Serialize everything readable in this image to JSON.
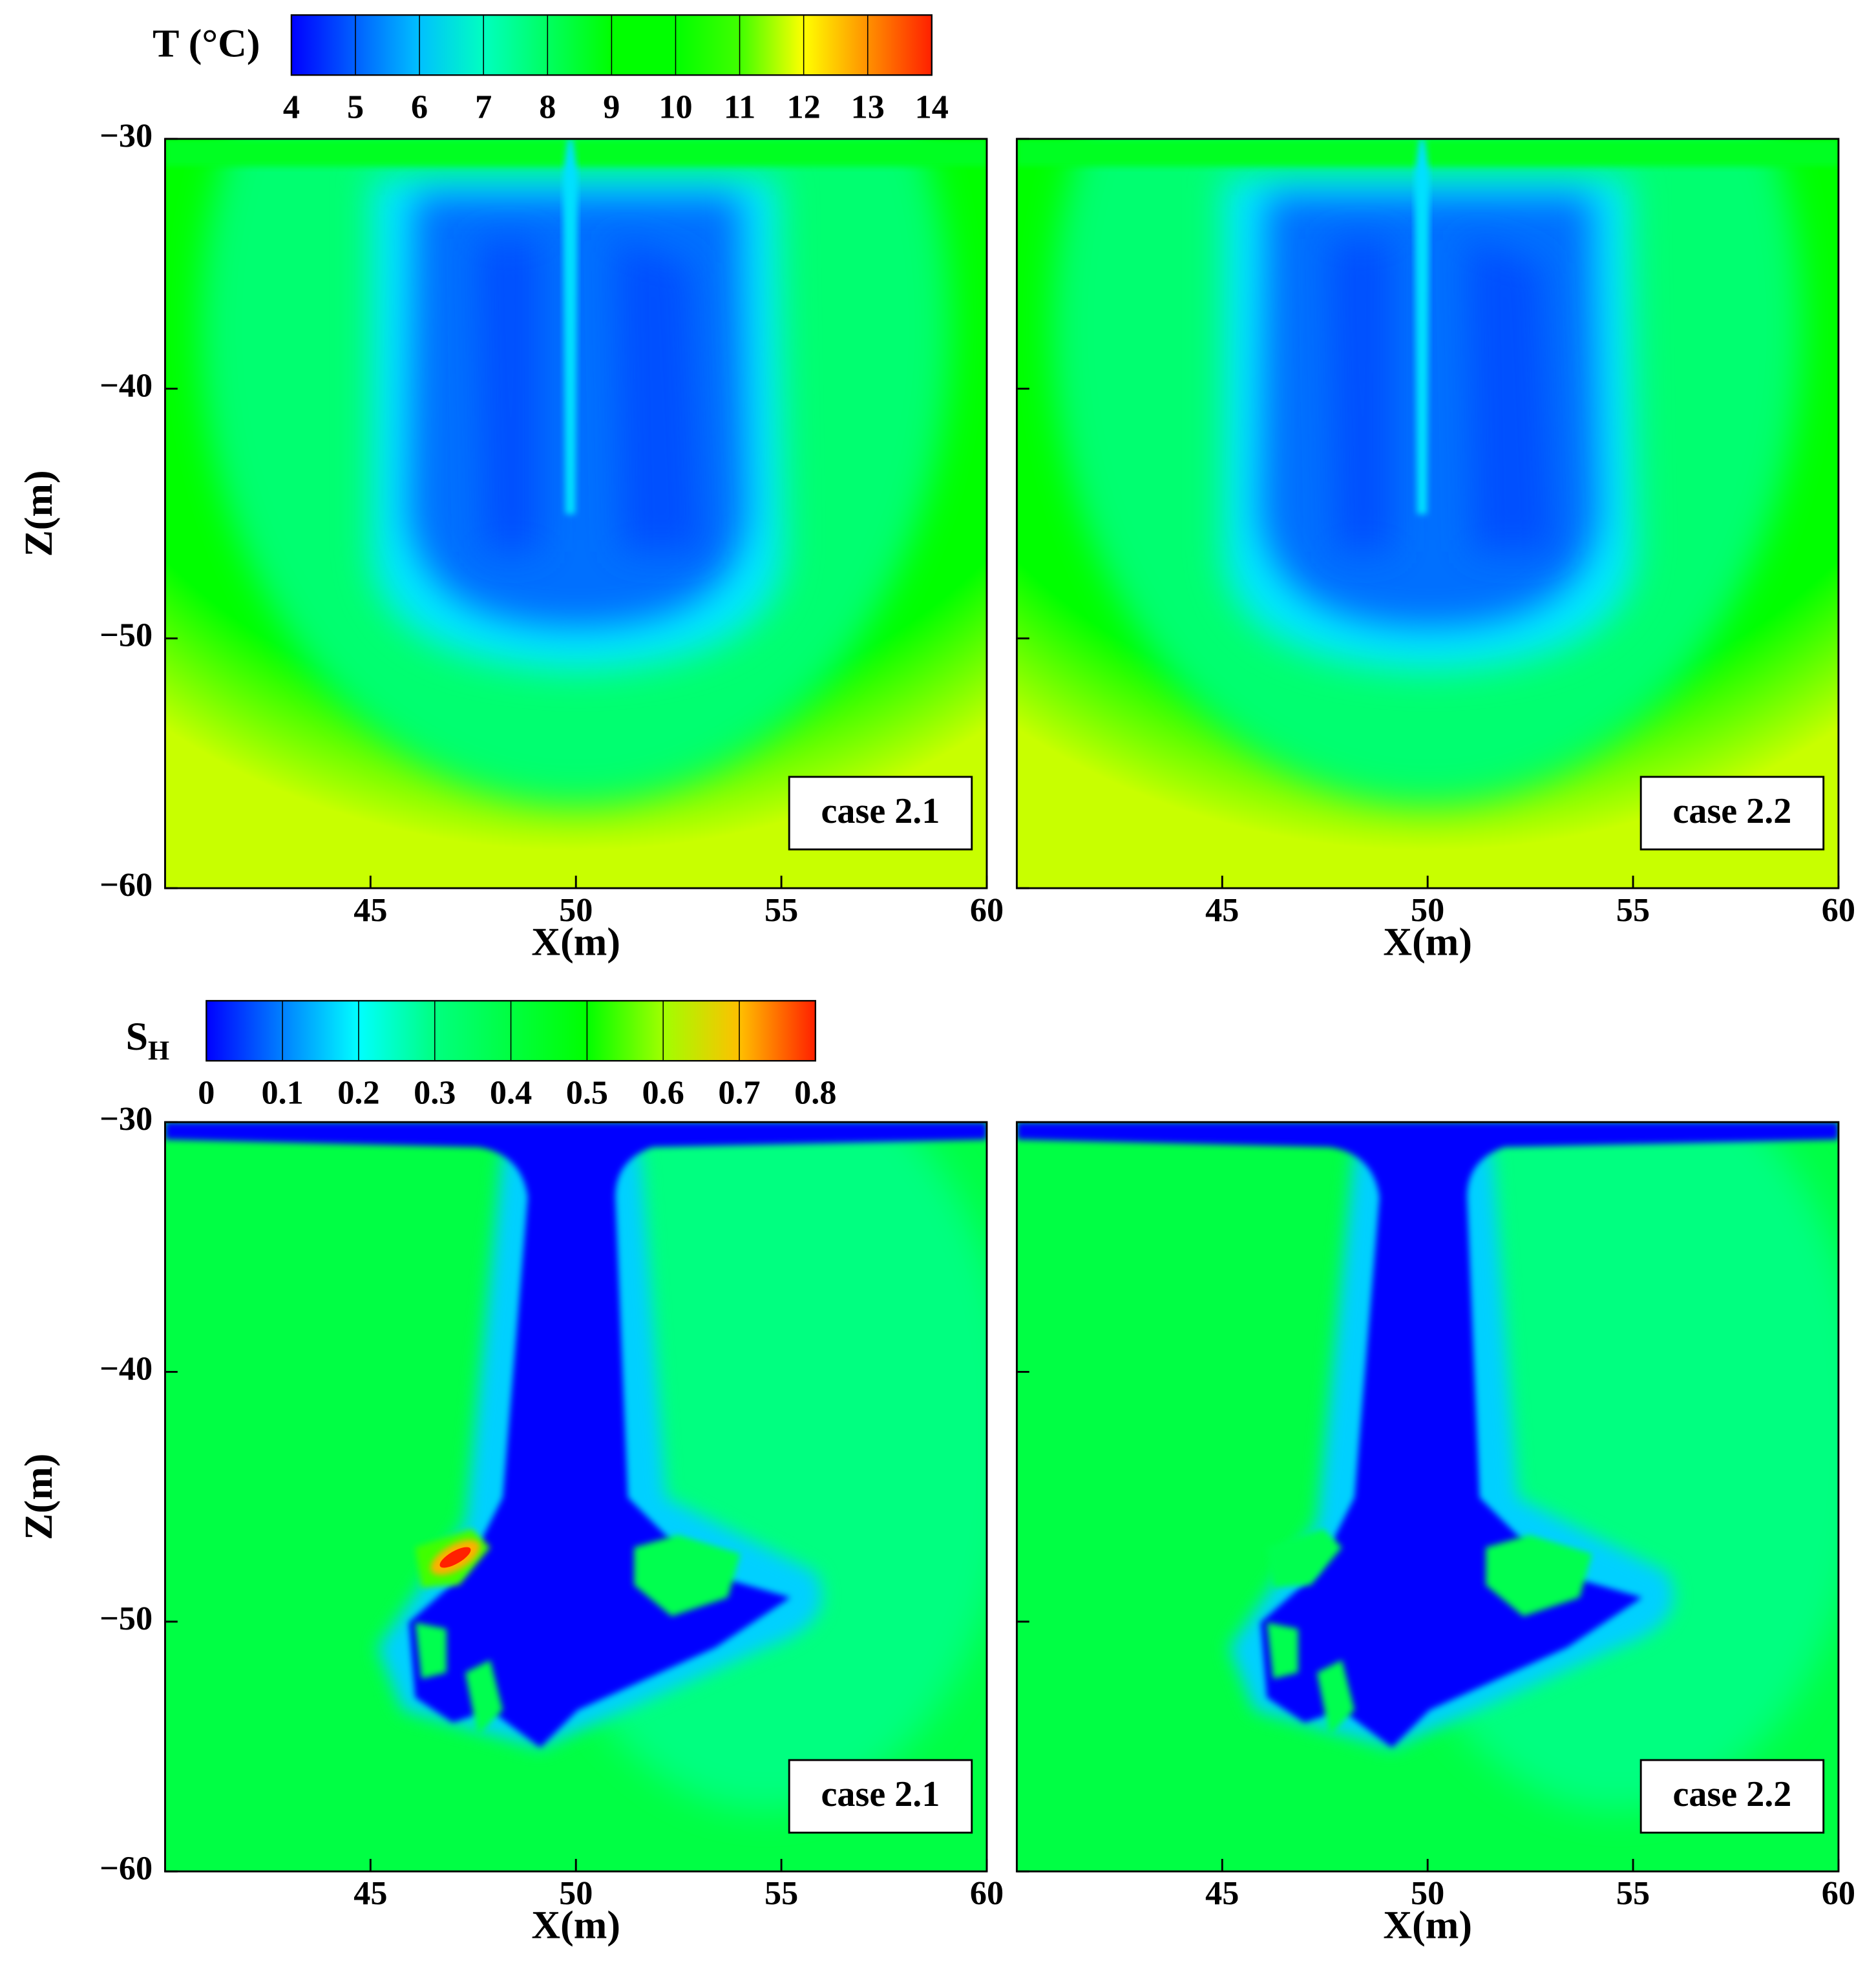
{
  "chart_data": [
    {
      "type": "heatmap",
      "field": "temperature",
      "xlabel": "X(m)",
      "ylabel": "Z(m)",
      "annotation": "case 2.1",
      "xlim": [
        40,
        60
      ],
      "xticks": [
        45,
        50,
        55,
        60
      ],
      "ylim": [
        -60,
        -30
      ],
      "show_ytick_labels": true,
      "yticks": [
        {
          "value": -30,
          "label": "−30"
        },
        {
          "value": -40,
          "label": "−40"
        },
        {
          "value": -50,
          "label": "−50"
        },
        {
          "value": -60,
          "label": "−60"
        }
      ],
      "colorbar": {
        "label": "T  (°C)",
        "ticks": [
          4,
          5,
          6,
          7,
          8,
          9,
          10,
          11,
          12,
          13,
          14
        ],
        "colors": [
          "#0000ff",
          "#0060ff",
          "#00c0ff",
          "#00ffc0",
          "#00ff60",
          "#00ff00",
          "#00ff00",
          "#40ff00",
          "#ffff00",
          "#ff9000",
          "#ff2000"
        ]
      }
    },
    {
      "type": "heatmap",
      "field": "temperature",
      "xlabel": "X(m)",
      "annotation": "case 2.2",
      "xlim": [
        40,
        60
      ],
      "xticks": [
        45,
        50,
        55,
        60
      ],
      "ylim": [
        -60,
        -30
      ],
      "show_ytick_labels": false,
      "yticks": [
        -30,
        -40,
        -50,
        -60
      ]
    },
    {
      "type": "heatmap",
      "field": "saturation",
      "xlabel": "X(m)",
      "ylabel": "Z(m)",
      "annotation": "case 2.1",
      "xlim": [
        40,
        60
      ],
      "xticks": [
        45,
        50,
        55,
        60
      ],
      "ylim": [
        -60,
        -30
      ],
      "show_ytick_labels": true,
      "yticks": [
        {
          "value": -30,
          "label": "−30"
        },
        {
          "value": -40,
          "label": "−40"
        },
        {
          "value": -50,
          "label": "−50"
        },
        {
          "value": -60,
          "label": "−60"
        }
      ],
      "colorbar": {
        "label": "S",
        "label_sub": "H",
        "ticks": [
          0,
          0.1,
          0.2,
          0.3,
          0.4,
          0.5,
          0.6,
          0.7,
          0.8
        ],
        "colors": [
          "#0000ff",
          "#0080ff",
          "#00ffff",
          "#00ff80",
          "#00ff40",
          "#00ff00",
          "#a0ff00",
          "#ffc000",
          "#ff2000"
        ]
      }
    },
    {
      "type": "heatmap",
      "field": "saturation",
      "xlabel": "X(m)",
      "annotation": "case 2.2",
      "xlim": [
        40,
        60
      ],
      "xticks": [
        45,
        50,
        55,
        60
      ],
      "ylim": [
        -60,
        -30
      ],
      "show_ytick_labels": false,
      "yticks": [
        -30,
        -40,
        -50,
        -60
      ]
    }
  ]
}
